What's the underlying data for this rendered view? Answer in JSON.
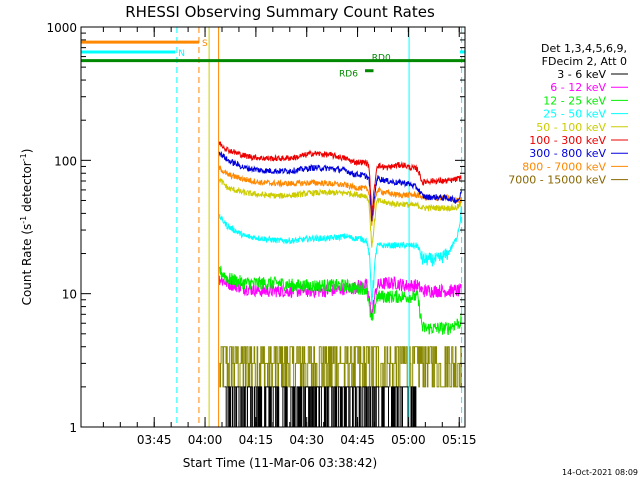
{
  "chart_data": {
    "type": "line",
    "title": "RHESSI Observing Summary Count Rates",
    "xlabel": "Start Time (11-Mar-06 03:38:42)",
    "ylabel_main": "Count Rate (s",
    "ylabel_sup": "-1",
    "ylabel_tail": " detector",
    "ylabel_end": ")",
    "ylim": [
      1,
      1000
    ],
    "y_scale": "log",
    "y_ticks": [
      {
        "v": 1,
        "label": "1"
      },
      {
        "v": 10,
        "label": "10"
      },
      {
        "v": 100,
        "label": "100"
      },
      {
        "v": 1000,
        "label": "1000"
      }
    ],
    "x_range_min": [
      -15.3,
      98
    ],
    "x_ticks": [
      {
        "t": 6.3,
        "label": "03:45"
      },
      {
        "t": 21.3,
        "label": "04:00"
      },
      {
        "t": 36.3,
        "label": "04:15"
      },
      {
        "t": 51.3,
        "label": "04:30"
      },
      {
        "t": 66.3,
        "label": "04:45"
      },
      {
        "t": 81.3,
        "label": "05:00"
      },
      {
        "t": 96.3,
        "label": "05:15"
      }
    ],
    "legend_header": [
      "Det 1,3,4,5,6,9,",
      "FDecim 2, Att 0"
    ],
    "legend": [
      {
        "label": "3 - 6 keV",
        "color": "#000000"
      },
      {
        "label": "6 - 12 keV",
        "color": "#ff00ff"
      },
      {
        "label": "12 - 25 keV",
        "color": "#00ee00"
      },
      {
        "label": "25 - 50 keV",
        "color": "#00ffff"
      },
      {
        "label": "50 - 100 keV",
        "color": "#cccc00"
      },
      {
        "label": "100 - 300 keV",
        "color": "#ee0000"
      },
      {
        "label": "300 - 800 keV",
        "color": "#0000dd"
      },
      {
        "label": "800 - 7000 keV",
        "color": "#ff8800"
      },
      {
        "label": "7000 - 15000 keV",
        "color": "#886600"
      }
    ],
    "series": [
      {
        "name": "100 - 300 keV",
        "color": "#ee0000",
        "x": [
          25.5,
          28,
          33,
          38,
          43,
          48,
          53,
          58,
          63,
          65,
          67,
          69,
          69.7,
          70.5,
          72,
          75,
          78,
          80,
          82,
          84,
          85.5,
          87,
          90,
          93,
          95.5,
          96.5,
          97
        ],
        "y": [
          135,
          120,
          108,
          104,
          103,
          105,
          113,
          110,
          103,
          97,
          97,
          96,
          90,
          40,
          92,
          88,
          92,
          92,
          88,
          86,
          68,
          70,
          70,
          70,
          72,
          73,
          78
        ]
      },
      {
        "name": "300 - 800 keV",
        "color": "#0000dd",
        "x": [
          25.5,
          28,
          33,
          38,
          43,
          48,
          53,
          58,
          63,
          65,
          67,
          69,
          69.7,
          70.5,
          72,
          75,
          78,
          80,
          82,
          84,
          85.5,
          87,
          90,
          93,
          95.5,
          96.5,
          97
        ],
        "y": [
          115,
          100,
          88,
          84,
          83,
          84,
          88,
          87,
          84,
          79,
          78,
          76,
          72,
          36,
          74,
          70,
          68,
          68,
          66,
          62,
          54,
          53,
          53,
          52,
          50,
          52,
          62
        ]
      },
      {
        "name": "800 - 7000 keV",
        "color": "#ff8800",
        "x": [
          25.5,
          28,
          33,
          38,
          43,
          48,
          53,
          58,
          63,
          65,
          67,
          69,
          69.7,
          70.5,
          72,
          75,
          78,
          80,
          82,
          84,
          85.5,
          87,
          90,
          93,
          95.5,
          96.5,
          97
        ],
        "y": [
          88,
          78,
          72,
          68,
          67,
          67,
          68,
          67,
          65,
          63,
          62,
          61,
          58,
          33,
          60,
          57,
          55,
          55,
          55,
          55,
          53,
          52,
          52,
          52,
          50,
          50,
          52
        ]
      },
      {
        "name": "50 - 100 keV",
        "color": "#cccc00",
        "x": [
          25.5,
          28,
          33,
          38,
          43,
          48,
          53,
          58,
          63,
          65,
          67,
          69,
          69.7,
          70.5,
          72,
          75,
          78,
          80,
          82,
          84,
          85.5,
          87,
          90,
          93,
          95.5,
          96.5,
          97
        ],
        "y": [
          72,
          62,
          57,
          55,
          54,
          55,
          57,
          57,
          57,
          56,
          55,
          54,
          48,
          22,
          50,
          48,
          47,
          47,
          46,
          46,
          44,
          44,
          44,
          44,
          44,
          46,
          50
        ]
      },
      {
        "name": "25 - 50 keV",
        "color": "#00ffff",
        "x": [
          25.5,
          28,
          33,
          38,
          43,
          48,
          53,
          58,
          63,
          65,
          67,
          69,
          69.7,
          70.5,
          72,
          75,
          78,
          80,
          82,
          84,
          85.5,
          87,
          90,
          93,
          95.5,
          96.5,
          97
        ],
        "y": [
          38,
          32,
          27,
          26,
          25,
          25,
          26,
          26,
          27,
          26,
          26,
          25,
          20,
          9,
          23,
          23,
          23,
          23,
          23,
          23,
          18,
          18,
          18,
          20,
          26,
          34,
          46
        ]
      },
      {
        "name": "12 - 25 keV",
        "color": "#00ee00",
        "x": [
          25.5,
          28,
          33,
          38,
          43,
          48,
          53,
          58,
          63,
          65,
          67,
          69,
          69.7,
          70.5,
          72,
          75,
          78,
          80,
          82,
          84,
          85.5,
          87,
          90,
          93,
          95.5,
          96.5,
          97
        ],
        "y": [
          15,
          13,
          12,
          12,
          12,
          11.5,
          11.5,
          11.5,
          11.5,
          11,
          11,
          11,
          8,
          6,
          9.5,
          9.5,
          9.5,
          9.5,
          9.5,
          9.5,
          5.5,
          5.5,
          5.5,
          5.5,
          6,
          6,
          6.5
        ]
      },
      {
        "name": "6 - 12 keV",
        "color": "#ff00ff",
        "x": [
          25.5,
          28,
          33,
          38,
          43,
          48,
          53,
          58,
          63,
          65,
          67,
          69,
          69.7,
          70.5,
          72,
          75,
          78,
          80,
          82,
          84,
          85.5,
          87,
          90,
          93,
          95.5,
          96.5,
          97
        ],
        "y": [
          13,
          12,
          11,
          10.5,
          10.5,
          10.5,
          10.5,
          10.5,
          11,
          11,
          11.5,
          11.5,
          9,
          7,
          11.5,
          12,
          12,
          11.5,
          11.5,
          11.5,
          10.5,
          10.5,
          10.5,
          10.5,
          10.5,
          10.5,
          10.5
        ]
      }
    ],
    "noise_bands": [
      {
        "name": "7000 - 15000 keV",
        "color": "#888800",
        "x0": 25.5,
        "x1": 97,
        "levels": [
          2,
          3,
          4
        ],
        "note": "quantized"
      },
      {
        "name": "3 - 6 keV",
        "color": "#000000",
        "x0": 27,
        "x1": 84,
        "levels": [
          1,
          2
        ],
        "note": "quantized"
      }
    ],
    "state_bars": [
      {
        "label": "S",
        "color": "#ff8800",
        "x0": -15.3,
        "x1": 19.5,
        "y": 770
      },
      {
        "label": "N",
        "color": "#00ffff",
        "x0": -15.3,
        "x1": 12.5,
        "y": 650
      },
      {
        "label": "",
        "color": "#00ffff",
        "x0": 96.5,
        "x1": 98,
        "y": 650
      },
      {
        "label": "RD0",
        "color": "#008800",
        "x0": -15.3,
        "x1": 98,
        "y": 560
      },
      {
        "label": "RD6",
        "color": "#008800",
        "x0": 68.5,
        "x1": 71,
        "y": 470
      }
    ],
    "vertical_lines": [
      {
        "t": 13,
        "color": "#00ffff",
        "style": "dashed"
      },
      {
        "t": 19.5,
        "color": "#ff8800",
        "style": "dashed"
      },
      {
        "t": 22.5,
        "color": "#cccc00",
        "style": "solid"
      },
      {
        "t": 25.3,
        "color": "#ff8800",
        "style": "solid"
      },
      {
        "t": 81.5,
        "color": "#00ffff",
        "style": "solid"
      },
      {
        "t": 97,
        "color": "#00ffff",
        "style": "dashed"
      }
    ],
    "footer_date": "14-Oct-2021 08:09"
  }
}
